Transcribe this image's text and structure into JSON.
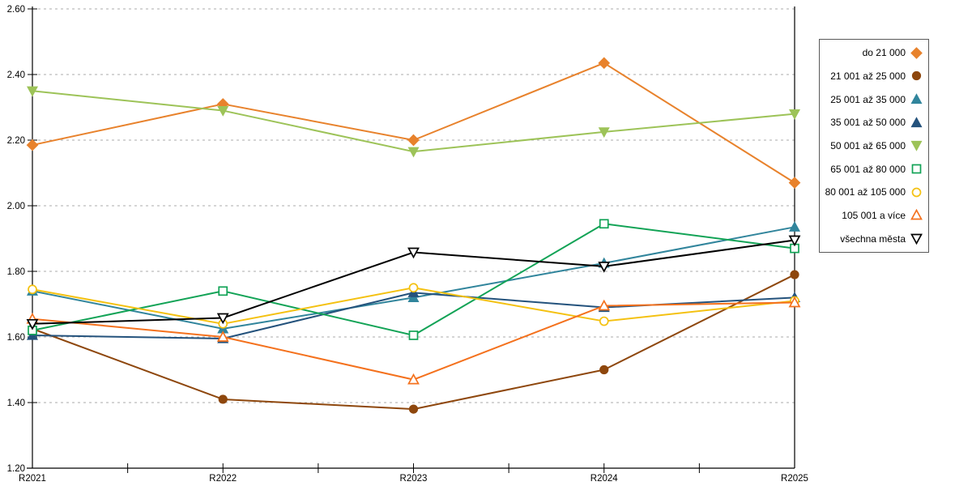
{
  "chart_data": {
    "type": "line",
    "title": "",
    "xlabel": "",
    "ylabel": "",
    "x": [
      "R2021",
      "R2022",
      "R2023",
      "R2024",
      "R2025"
    ],
    "ylim": [
      1.2,
      2.6
    ],
    "ytick_step": 0.2,
    "yticks": [
      "1.20",
      "1.40",
      "1.60",
      "1.80",
      "2.00",
      "2.20",
      "2.40",
      "2.60"
    ],
    "grid": "horizontal-dashed",
    "legend_position": "right",
    "series": [
      {
        "name": "do 21 000",
        "color": "#E8822C",
        "marker": "diamond",
        "fill": "filled",
        "values": [
          2.185,
          2.31,
          2.2,
          2.435,
          2.07
        ]
      },
      {
        "name": "21 001 až 25 000",
        "color": "#8E470D",
        "marker": "circle",
        "fill": "filled",
        "values": [
          1.625,
          1.41,
          1.38,
          1.5,
          1.79
        ]
      },
      {
        "name": "25 001 až 35 000",
        "color": "#31859C",
        "marker": "triangle-up",
        "fill": "filled",
        "values": [
          1.74,
          1.625,
          1.72,
          1.825,
          1.935
        ]
      },
      {
        "name": "35 001 až 50 000",
        "color": "#24527C",
        "marker": "triangle-up",
        "fill": "filled",
        "values": [
          1.605,
          1.595,
          1.735,
          1.69,
          1.72
        ]
      },
      {
        "name": "50 001 až 65 000",
        "color": "#9DC358",
        "marker": "triangle-down",
        "fill": "filled",
        "values": [
          2.35,
          2.29,
          2.165,
          2.225,
          2.28
        ]
      },
      {
        "name": "65 001 až 80 000",
        "color": "#12A356",
        "marker": "square",
        "fill": "open",
        "values": [
          1.62,
          1.74,
          1.605,
          1.945,
          1.87
        ]
      },
      {
        "name": "80 001 až 105 000",
        "color": "#F4C111",
        "marker": "circle",
        "fill": "open",
        "values": [
          1.745,
          1.64,
          1.75,
          1.648,
          1.71
        ]
      },
      {
        "name": "105 001 a více",
        "color": "#F4711D",
        "marker": "triangle-up",
        "fill": "open",
        "values": [
          1.655,
          1.6,
          1.47,
          1.695,
          1.705
        ]
      },
      {
        "name": "všechna města",
        "color": "#000000",
        "marker": "triangle-down",
        "fill": "open",
        "values": [
          1.64,
          1.658,
          1.858,
          1.815,
          1.895
        ]
      }
    ]
  }
}
